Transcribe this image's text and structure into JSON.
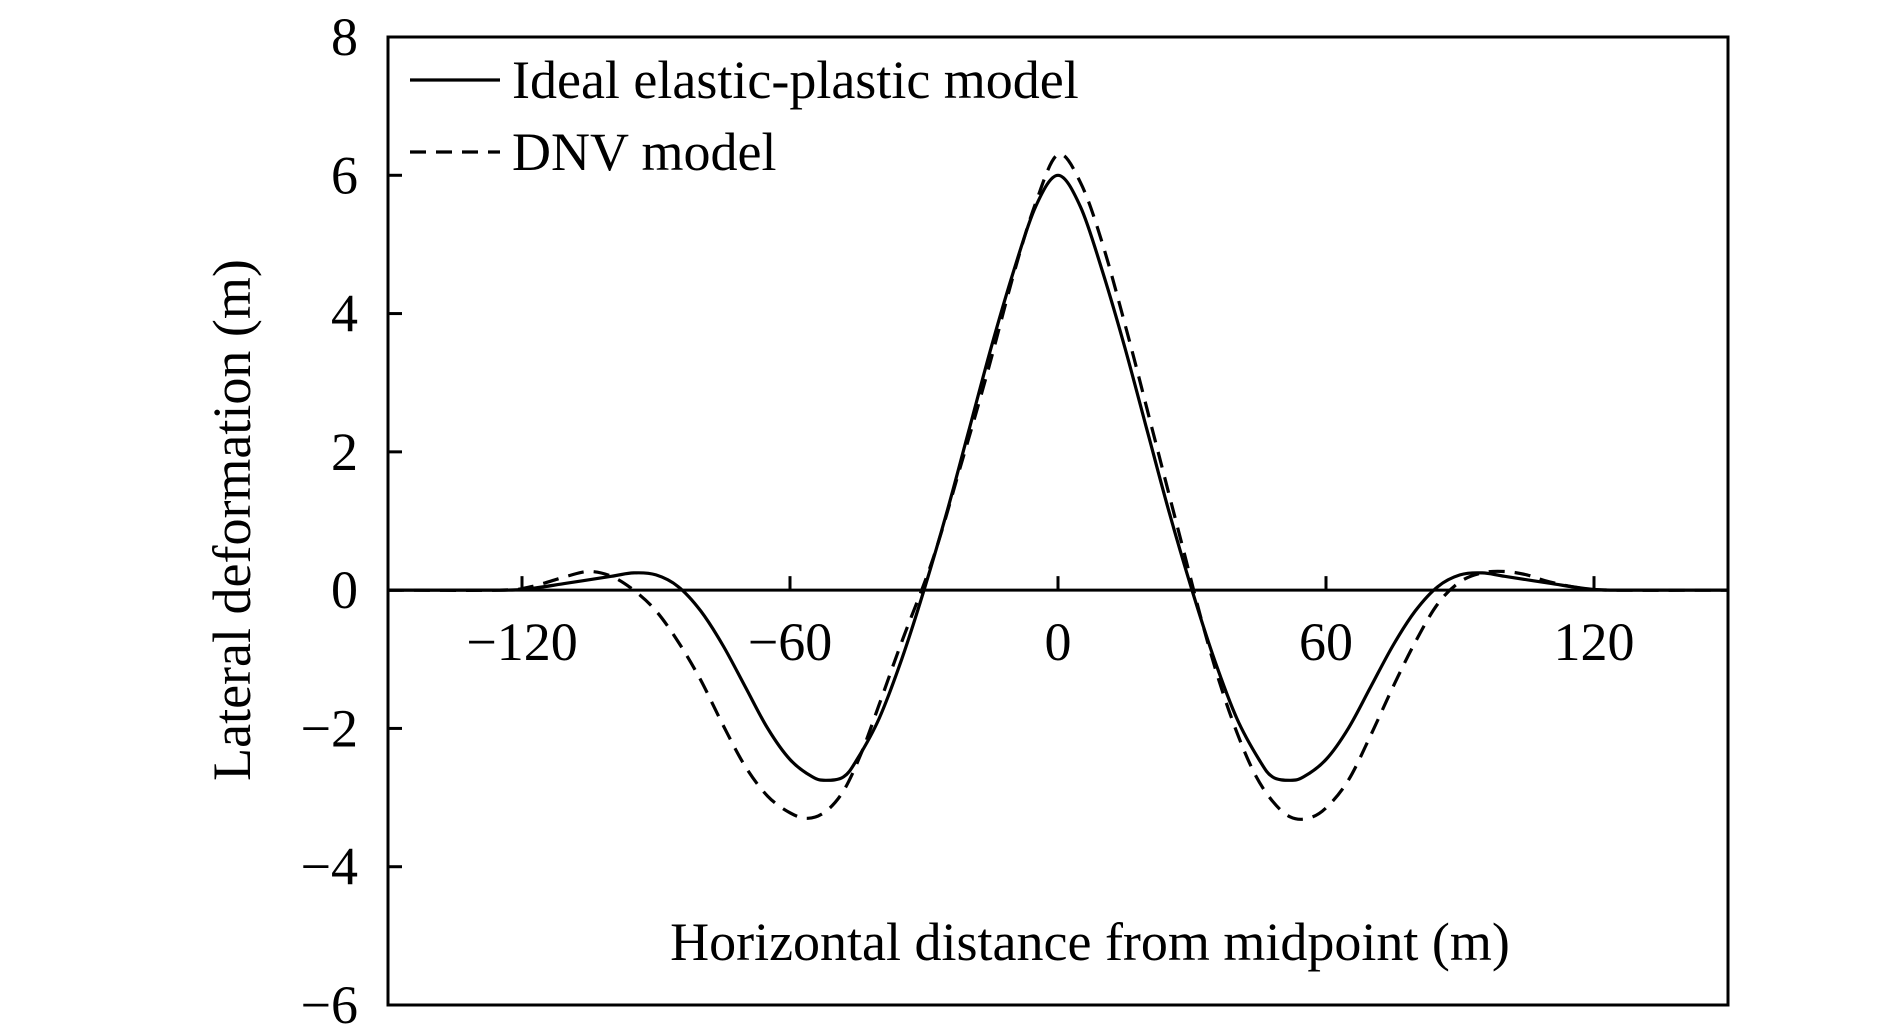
{
  "chart_data": {
    "type": "line",
    "title": "",
    "xlabel": "Horizontal distance from midpoint (m)",
    "ylabel": "Lateral deformation (m)",
    "xlim": [
      -150,
      150
    ],
    "ylim": [
      -6,
      8
    ],
    "x_ticks": [
      -120,
      -60,
      0,
      60,
      120
    ],
    "x_tick_labels": [
      "−120",
      "−60",
      "0",
      "60",
      "120"
    ],
    "y_ticks": [
      8,
      6,
      4,
      2,
      0,
      -2,
      -4,
      -6
    ],
    "y_tick_labels": [
      "8",
      "6",
      "4",
      "2",
      "0",
      "−2",
      "−4",
      "−6"
    ],
    "grid": false,
    "legend_position": "top-left",
    "series": [
      {
        "name": "Ideal elastic-plastic model",
        "line_style": "solid",
        "color": "#000000",
        "points": [
          [
            -150,
            0
          ],
          [
            -130,
            0
          ],
          [
            -120,
            0.01
          ],
          [
            -110,
            0.1
          ],
          [
            -100,
            0.2
          ],
          [
            -95,
            0.25
          ],
          [
            -90,
            0.22
          ],
          [
            -85,
            0.05
          ],
          [
            -80,
            -0.3
          ],
          [
            -75,
            -0.8
          ],
          [
            -70,
            -1.4
          ],
          [
            -65,
            -2.0
          ],
          [
            -60,
            -2.45
          ],
          [
            -55,
            -2.7
          ],
          [
            -52,
            -2.75
          ],
          [
            -48,
            -2.7
          ],
          [
            -45,
            -2.45
          ],
          [
            -40,
            -1.85
          ],
          [
            -35,
            -1.0
          ],
          [
            -30,
            0
          ],
          [
            -25,
            1.1
          ],
          [
            -20,
            2.3
          ],
          [
            -15,
            3.5
          ],
          [
            -10,
            4.6
          ],
          [
            -5,
            5.55
          ],
          [
            0,
            6.0
          ],
          [
            5,
            5.55
          ],
          [
            10,
            4.6
          ],
          [
            15,
            3.5
          ],
          [
            20,
            2.3
          ],
          [
            25,
            1.1
          ],
          [
            30,
            0
          ],
          [
            35,
            -1.0
          ],
          [
            40,
            -1.85
          ],
          [
            45,
            -2.45
          ],
          [
            48,
            -2.7
          ],
          [
            52,
            -2.75
          ],
          [
            55,
            -2.7
          ],
          [
            60,
            -2.45
          ],
          [
            65,
            -2.0
          ],
          [
            70,
            -1.4
          ],
          [
            75,
            -0.8
          ],
          [
            80,
            -0.3
          ],
          [
            85,
            0.05
          ],
          [
            90,
            0.22
          ],
          [
            95,
            0.25
          ],
          [
            100,
            0.2
          ],
          [
            110,
            0.1
          ],
          [
            120,
            0.01
          ],
          [
            130,
            0
          ],
          [
            150,
            0
          ]
        ]
      },
      {
        "name": "DNV model",
        "line_style": "dashed",
        "color": "#000000",
        "points": [
          [
            -150,
            0
          ],
          [
            -125,
            0
          ],
          [
            -118,
            0.05
          ],
          [
            -110,
            0.2
          ],
          [
            -105,
            0.27
          ],
          [
            -100,
            0.2
          ],
          [
            -95,
            0
          ],
          [
            -90,
            -0.3
          ],
          [
            -85,
            -0.75
          ],
          [
            -80,
            -1.3
          ],
          [
            -75,
            -1.95
          ],
          [
            -70,
            -2.55
          ],
          [
            -65,
            -2.98
          ],
          [
            -60,
            -3.22
          ],
          [
            -56,
            -3.3
          ],
          [
            -52,
            -3.2
          ],
          [
            -48,
            -2.9
          ],
          [
            -44,
            -2.35
          ],
          [
            -40,
            -1.65
          ],
          [
            -35,
            -0.75
          ],
          [
            -28,
            0.45
          ],
          [
            -22,
            1.75
          ],
          [
            -16,
            3.1
          ],
          [
            -10,
            4.55
          ],
          [
            -5,
            5.6
          ],
          [
            0,
            6.3
          ],
          [
            5,
            5.9
          ],
          [
            10,
            5.0
          ],
          [
            16,
            3.6
          ],
          [
            22,
            2.1
          ],
          [
            28,
            0.6
          ],
          [
            32,
            -0.4
          ],
          [
            36,
            -1.3
          ],
          [
            40,
            -2.05
          ],
          [
            44,
            -2.65
          ],
          [
            48,
            -3.05
          ],
          [
            52,
            -3.28
          ],
          [
            56,
            -3.3
          ],
          [
            60,
            -3.15
          ],
          [
            65,
            -2.75
          ],
          [
            70,
            -2.1
          ],
          [
            75,
            -1.4
          ],
          [
            80,
            -0.75
          ],
          [
            85,
            -0.2
          ],
          [
            90,
            0.12
          ],
          [
            95,
            0.25
          ],
          [
            100,
            0.27
          ],
          [
            105,
            0.22
          ],
          [
            110,
            0.12
          ],
          [
            118,
            0.02
          ],
          [
            125,
            0
          ],
          [
            150,
            0
          ]
        ]
      }
    ]
  }
}
